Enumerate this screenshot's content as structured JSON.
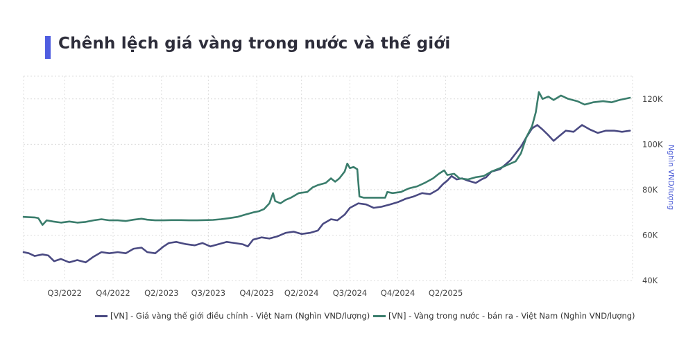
{
  "title": "Chênh lệch giá vàng trong nước và thế giới",
  "colors": {
    "accent": "#4f5de0",
    "series_world": "#4a4a82",
    "series_domestic": "#3a7d6c",
    "ylabel": "#4a5bd6",
    "grid": "#dcdcdc"
  },
  "chart_data": {
    "type": "line",
    "ylabel": "Nghìn VND/lượng",
    "ylim": [
      40000,
      130000
    ],
    "xlim": [
      "2022-05-15",
      "2025-07-15"
    ],
    "yticks": [
      40000,
      60000,
      80000,
      100000,
      120000
    ],
    "ytick_labels": [
      "40K",
      "60K",
      "80K",
      "100K",
      "120K"
    ],
    "xticks": [
      "2022-08-01",
      "2022-11-01",
      "2023-02-01",
      "2023-05-01",
      "2023-08-01",
      "2023-10-25",
      "2024-01-25",
      "2024-04-25",
      "2024-07-25"
    ],
    "xtick_labels": [
      "Q3/2022",
      "Q4/2022",
      "Q2/2023",
      "Q3/2023",
      "Q4/2023",
      "Q2/2024",
      "Q3/2024",
      "Q4/2024",
      "Q2/2025"
    ],
    "grid": true,
    "legend_position": "bottom",
    "series": [
      {
        "name": "[VN] - Giá vàng thế giới điều chỉnh - Việt Nam (Nghìn VND/lượng)",
        "color": "#4a4a82",
        "points": [
          [
            "2022-05-15",
            52500
          ],
          [
            "2022-05-25",
            52000
          ],
          [
            "2022-06-05",
            50800
          ],
          [
            "2022-06-20",
            51500
          ],
          [
            "2022-07-01",
            51000
          ],
          [
            "2022-07-12",
            48500
          ],
          [
            "2022-07-25",
            49500
          ],
          [
            "2022-08-10",
            48000
          ],
          [
            "2022-08-25",
            49000
          ],
          [
            "2022-09-10",
            48000
          ],
          [
            "2022-09-25",
            50500
          ],
          [
            "2022-10-10",
            52500
          ],
          [
            "2022-10-25",
            52000
          ],
          [
            "2022-11-10",
            52500
          ],
          [
            "2022-11-25",
            52000
          ],
          [
            "2022-12-10",
            54000
          ],
          [
            "2022-12-25",
            54500
          ],
          [
            "2023-01-05",
            52500
          ],
          [
            "2023-01-20",
            52000
          ],
          [
            "2023-02-05",
            55000
          ],
          [
            "2023-02-15",
            56500
          ],
          [
            "2023-03-01",
            57000
          ],
          [
            "2023-03-20",
            56000
          ],
          [
            "2023-04-05",
            55500
          ],
          [
            "2023-04-20",
            56500
          ],
          [
            "2023-05-05",
            55000
          ],
          [
            "2023-05-20",
            56000
          ],
          [
            "2023-06-05",
            57000
          ],
          [
            "2023-06-20",
            56500
          ],
          [
            "2023-07-05",
            56000
          ],
          [
            "2023-07-15",
            55000
          ],
          [
            "2023-07-25",
            58000
          ],
          [
            "2023-08-10",
            59000
          ],
          [
            "2023-08-25",
            58500
          ],
          [
            "2023-09-10",
            59500
          ],
          [
            "2023-09-25",
            61000
          ],
          [
            "2023-10-10",
            61500
          ],
          [
            "2023-10-25",
            60500
          ],
          [
            "2023-11-10",
            61000
          ],
          [
            "2023-11-25",
            62000
          ],
          [
            "2023-12-05",
            65000
          ],
          [
            "2023-12-20",
            67000
          ],
          [
            "2024-01-01",
            66500
          ],
          [
            "2024-01-15",
            69000
          ],
          [
            "2024-01-25",
            72000
          ],
          [
            "2024-02-10",
            74000
          ],
          [
            "2024-02-25",
            73500
          ],
          [
            "2024-03-10",
            72000
          ],
          [
            "2024-03-25",
            72500
          ],
          [
            "2024-04-10",
            73500
          ],
          [
            "2024-04-25",
            74500
          ],
          [
            "2024-05-10",
            76000
          ],
          [
            "2024-05-25",
            77000
          ],
          [
            "2024-06-10",
            78500
          ],
          [
            "2024-06-25",
            78000
          ],
          [
            "2024-07-10",
            80000
          ],
          [
            "2024-07-20",
            82500
          ],
          [
            "2024-07-28",
            84000
          ],
          [
            "2024-08-05",
            86000
          ],
          [
            "2024-08-15",
            84500
          ],
          [
            "2024-08-25",
            85000
          ],
          [
            "2024-09-05",
            84000
          ],
          [
            "2024-09-20",
            83000
          ],
          [
            "2024-10-01",
            84500
          ],
          [
            "2024-10-10",
            85500
          ],
          [
            "2024-10-20",
            88000
          ],
          [
            "2024-11-05",
            89000
          ],
          [
            "2024-11-15",
            91000
          ],
          [
            "2024-11-25",
            93000
          ],
          [
            "2024-12-05",
            96000
          ],
          [
            "2024-12-15",
            99000
          ],
          [
            "2024-12-25",
            103000
          ],
          [
            "2025-01-05",
            107000
          ],
          [
            "2025-01-15",
            108500
          ],
          [
            "2025-01-25",
            106500
          ],
          [
            "2025-02-05",
            104000
          ],
          [
            "2025-02-15",
            101500
          ],
          [
            "2025-02-25",
            103500
          ],
          [
            "2025-03-10",
            106000
          ],
          [
            "2025-03-25",
            105500
          ],
          [
            "2025-04-10",
            108500
          ],
          [
            "2025-04-25",
            106500
          ],
          [
            "2025-05-10",
            105000
          ],
          [
            "2025-05-25",
            106000
          ],
          [
            "2025-06-10",
            106000
          ],
          [
            "2025-06-25",
            105500
          ],
          [
            "2025-07-10",
            106000
          ]
        ]
      },
      {
        "name": "[VN] - Vàng trong nước - bán ra - Việt Nam (Nghìn VND/lượng)",
        "color": "#3a7d6c",
        "points": [
          [
            "2022-05-15",
            68000
          ],
          [
            "2022-05-25",
            67900
          ],
          [
            "2022-06-05",
            67800
          ],
          [
            "2022-06-12",
            67500
          ],
          [
            "2022-06-20",
            64500
          ],
          [
            "2022-06-28",
            66500
          ],
          [
            "2022-07-10",
            66000
          ],
          [
            "2022-07-25",
            65500
          ],
          [
            "2022-08-10",
            66000
          ],
          [
            "2022-08-25",
            65500
          ],
          [
            "2022-09-10",
            65800
          ],
          [
            "2022-09-25",
            66500
          ],
          [
            "2022-10-10",
            67000
          ],
          [
            "2022-10-25",
            66500
          ],
          [
            "2022-11-10",
            66500
          ],
          [
            "2022-11-25",
            66200
          ],
          [
            "2022-12-10",
            66800
          ],
          [
            "2022-12-25",
            67200
          ],
          [
            "2023-01-05",
            66800
          ],
          [
            "2023-01-20",
            66500
          ],
          [
            "2023-02-05",
            66500
          ],
          [
            "2023-02-20",
            66600
          ],
          [
            "2023-03-10",
            66600
          ],
          [
            "2023-03-25",
            66500
          ],
          [
            "2023-04-10",
            66500
          ],
          [
            "2023-04-25",
            66600
          ],
          [
            "2023-05-10",
            66700
          ],
          [
            "2023-05-25",
            67000
          ],
          [
            "2023-06-10",
            67500
          ],
          [
            "2023-06-25",
            68000
          ],
          [
            "2023-07-10",
            69000
          ],
          [
            "2023-07-25",
            70000
          ],
          [
            "2023-08-05",
            70500
          ],
          [
            "2023-08-15",
            71500
          ],
          [
            "2023-08-25",
            74000
          ],
          [
            "2023-09-01",
            78500
          ],
          [
            "2023-09-05",
            75000
          ],
          [
            "2023-09-15",
            74000
          ],
          [
            "2023-09-25",
            75500
          ],
          [
            "2023-10-05",
            76500
          ],
          [
            "2023-10-20",
            78500
          ],
          [
            "2023-11-05",
            79000
          ],
          [
            "2023-11-15",
            81000
          ],
          [
            "2023-11-25",
            82000
          ],
          [
            "2023-12-10",
            83000
          ],
          [
            "2023-12-20",
            85000
          ],
          [
            "2023-12-28",
            83500
          ],
          [
            "2024-01-05",
            85000
          ],
          [
            "2024-01-15",
            88000
          ],
          [
            "2024-01-20",
            91500
          ],
          [
            "2024-01-25",
            89500
          ],
          [
            "2024-02-01",
            90000
          ],
          [
            "2024-02-08",
            89000
          ],
          [
            "2024-02-12",
            77000
          ],
          [
            "2024-02-20",
            76500
          ],
          [
            "2024-03-05",
            76500
          ],
          [
            "2024-03-20",
            76500
          ],
          [
            "2024-04-01",
            76500
          ],
          [
            "2024-04-05",
            79000
          ],
          [
            "2024-04-15",
            78500
          ],
          [
            "2024-05-01",
            79000
          ],
          [
            "2024-05-15",
            80500
          ],
          [
            "2024-06-01",
            81500
          ],
          [
            "2024-06-15",
            83000
          ],
          [
            "2024-07-01",
            85000
          ],
          [
            "2024-07-12",
            87000
          ],
          [
            "2024-07-22",
            88500
          ],
          [
            "2024-07-28",
            86500
          ],
          [
            "2024-08-10",
            87000
          ],
          [
            "2024-08-20",
            85000
          ],
          [
            "2024-09-05",
            84500
          ],
          [
            "2024-09-20",
            85500
          ],
          [
            "2024-10-05",
            86000
          ],
          [
            "2024-10-20",
            88000
          ],
          [
            "2024-11-05",
            89500
          ],
          [
            "2024-11-20",
            91000
          ],
          [
            "2024-12-05",
            92500
          ],
          [
            "2024-12-15",
            96000
          ],
          [
            "2024-12-25",
            103000
          ],
          [
            "2025-01-05",
            108000
          ],
          [
            "2025-01-12",
            114000
          ],
          [
            "2025-01-18",
            123000
          ],
          [
            "2025-01-25",
            120000
          ],
          [
            "2025-02-05",
            121000
          ],
          [
            "2025-02-15",
            119500
          ],
          [
            "2025-03-01",
            121500
          ],
          [
            "2025-03-15",
            120000
          ],
          [
            "2025-04-01",
            119000
          ],
          [
            "2025-04-15",
            117500
          ],
          [
            "2025-05-01",
            118500
          ],
          [
            "2025-05-20",
            119000
          ],
          [
            "2025-06-05",
            118500
          ],
          [
            "2025-06-20",
            119500
          ],
          [
            "2025-07-10",
            120500
          ]
        ]
      }
    ]
  }
}
